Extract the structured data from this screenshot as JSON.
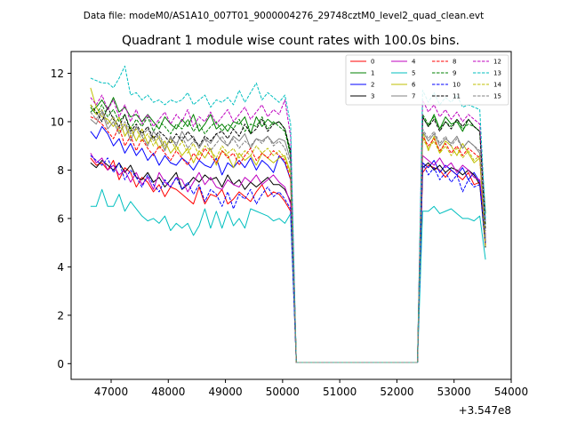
{
  "chart_data": {
    "type": "line",
    "file_label": "Data file: modeM0/AS1A10_007T01_9000004276_29748cztM0_level2_quad_clean.evt",
    "title": "Quadrant 1 module wise count rates with 100.0s bins.",
    "xlabel": "",
    "ylabel": "",
    "x_offset_label": "+3.547e8",
    "xlim": [
      46300,
      54000
    ],
    "ylim": [
      -0.65,
      12.9
    ],
    "x_ticks": [
      47000,
      48000,
      49000,
      50000,
      51000,
      52000,
      53000,
      54000
    ],
    "x_tick_labels": [
      "47000",
      "48000",
      "49000",
      "50000",
      "51000",
      "52000",
      "53000",
      "54000"
    ],
    "y_ticks": [
      0,
      2,
      4,
      6,
      8,
      10,
      12
    ],
    "y_tick_labels": [
      "0",
      "2",
      "4",
      "6",
      "8",
      "10",
      "12"
    ],
    "legend_location": "upper right",
    "segments": [
      {
        "start": 46640,
        "step": 100,
        "count": 36
      },
      {
        "start": 52450,
        "step": 100,
        "count": 12
      }
    ],
    "gap_x": [
      50240,
      52360
    ],
    "gap_y": 0.05,
    "series": [
      {
        "name": "0",
        "color": "#ff0000",
        "dashed": false,
        "seg1": [
          8.5,
          8.2,
          8.3,
          8.0,
          8.4,
          7.6,
          8.1,
          7.9,
          7.3,
          7.7,
          7.5,
          7.1,
          7.4,
          6.9,
          7.3,
          7.2,
          7.0,
          6.8,
          6.6,
          7.3,
          6.6,
          7.0,
          6.9,
          7.2,
          6.6,
          6.8,
          7.1,
          6.9,
          6.7,
          7.1,
          7.4,
          6.9,
          7.1,
          7.0,
          6.7,
          6.3
        ],
        "seg2": [
          7.9,
          8.2,
          8.1,
          8.0,
          7.7,
          8.0,
          7.8,
          7.6,
          7.9,
          7.4,
          7.5,
          5.0
        ]
      },
      {
        "name": "1",
        "color": "#008000",
        "dashed": false,
        "seg1": [
          10.4,
          10.6,
          10.9,
          10.5,
          11.0,
          10.4,
          10.6,
          10.2,
          10.3,
          10.0,
          10.3,
          10.0,
          9.7,
          10.2,
          9.9,
          9.7,
          10.1,
          9.8,
          10.3,
          9.6,
          9.9,
          10.3,
          9.7,
          9.9,
          9.6,
          10.0,
          9.9,
          10.2,
          9.5,
          10.2,
          9.8,
          10.1,
          9.9,
          10.0,
          9.7,
          8.7
        ],
        "seg2": [
          10.2,
          9.8,
          10.3,
          9.7,
          10.2,
          9.9,
          10.0,
          9.6,
          10.1,
          9.8,
          9.6,
          6.2
        ]
      },
      {
        "name": "2",
        "color": "#0000ff",
        "dashed": false,
        "seg1": [
          9.6,
          9.3,
          9.8,
          9.5,
          9.0,
          9.3,
          8.7,
          9.1,
          8.6,
          8.9,
          8.4,
          8.7,
          8.2,
          8.6,
          8.3,
          8.2,
          8.5,
          8.3,
          8.0,
          8.4,
          8.2,
          8.1,
          8.5,
          7.8,
          8.3,
          8.1,
          8.4,
          8.1,
          8.5,
          8.0,
          8.4,
          8.2,
          7.9,
          8.6,
          8.3,
          7.6
        ],
        "seg2": [
          8.3,
          8.1,
          8.4,
          7.9,
          8.2,
          8.0,
          7.8,
          8.1,
          7.6,
          7.9,
          7.5,
          5.2
        ]
      },
      {
        "name": "3",
        "color": "#000000",
        "dashed": false,
        "seg1": [
          8.3,
          8.1,
          8.4,
          8.2,
          8.0,
          8.3,
          7.9,
          8.2,
          7.7,
          7.6,
          7.9,
          7.5,
          7.7,
          7.3,
          7.6,
          7.9,
          7.2,
          7.4,
          7.7,
          7.5,
          7.8,
          7.6,
          7.7,
          7.3,
          7.8,
          7.4,
          7.6,
          7.2,
          7.5,
          7.3,
          7.5,
          7.7,
          7.4,
          7.4,
          7.2,
          6.7
        ],
        "seg2": [
          8.1,
          8.3,
          8.0,
          8.2,
          7.9,
          8.1,
          8.0,
          7.8,
          8.0,
          7.8,
          7.4,
          4.8
        ]
      },
      {
        "name": "4",
        "color": "#bf00bf",
        "dashed": false,
        "seg1": [
          8.7,
          8.3,
          8.5,
          8.0,
          8.2,
          7.8,
          8.0,
          7.5,
          7.9,
          7.4,
          7.7,
          7.2,
          7.9,
          7.5,
          7.3,
          7.7,
          7.6,
          7.1,
          7.5,
          7.9,
          7.4,
          7.7,
          7.3,
          7.2,
          7.6,
          7.4,
          7.3,
          7.7,
          7.5,
          7.8,
          7.4,
          7.6,
          7.8,
          7.5,
          7.3,
          6.6
        ],
        "seg2": [
          8.6,
          8.4,
          8.2,
          8.5,
          8.1,
          8.3,
          7.9,
          8.2,
          8.0,
          7.7,
          7.6,
          5.3
        ]
      },
      {
        "name": "5",
        "color": "#00bfbf",
        "dashed": false,
        "seg1": [
          6.5,
          6.5,
          7.2,
          6.5,
          6.5,
          7.0,
          6.3,
          6.7,
          6.4,
          6.1,
          5.9,
          6.0,
          5.8,
          6.1,
          5.5,
          5.8,
          5.6,
          5.8,
          5.3,
          5.7,
          6.4,
          5.6,
          6.3,
          5.6,
          6.3,
          5.7,
          6.0,
          5.6,
          6.4,
          6.3,
          6.2,
          6.1,
          5.9,
          6.0,
          5.8,
          6.2
        ],
        "seg2": [
          6.3,
          6.3,
          6.5,
          6.2,
          6.3,
          6.4,
          6.2,
          6.0,
          6.0,
          5.9,
          6.1,
          4.3
        ]
      },
      {
        "name": "6",
        "color": "#bfbf00",
        "dashed": false,
        "seg1": [
          11.4,
          10.6,
          10.2,
          10.1,
          9.8,
          10.2,
          9.4,
          9.8,
          9.2,
          9.7,
          9.1,
          9.4,
          8.9,
          9.2,
          8.7,
          9.0,
          8.6,
          8.9,
          8.3,
          8.8,
          8.5,
          8.9,
          8.2,
          8.8,
          8.6,
          8.1,
          8.7,
          8.4,
          8.6,
          8.2,
          8.7,
          8.5,
          8.3,
          8.5,
          8.6,
          7.9
        ],
        "seg2": [
          9.6,
          8.8,
          9.4,
          8.7,
          9.2,
          9.0,
          8.6,
          9.1,
          8.7,
          8.3,
          8.5,
          4.9
        ]
      },
      {
        "name": "7",
        "color": "#808080",
        "dashed": false,
        "seg1": [
          10.1,
          9.9,
          10.4,
          9.7,
          10.0,
          9.5,
          9.9,
          9.2,
          9.8,
          9.4,
          9.0,
          9.6,
          9.3,
          8.8,
          9.4,
          9.0,
          9.6,
          9.2,
          9.4,
          8.9,
          9.3,
          9.1,
          9.5,
          9.2,
          9.0,
          9.4,
          9.2,
          9.5,
          8.9,
          9.3,
          9.2,
          9.4,
          9.1,
          9.3,
          9.2,
          8.4
        ],
        "seg2": [
          9.6,
          9.2,
          9.5,
          9.0,
          9.3,
          9.1,
          9.4,
          8.9,
          9.2,
          9.0,
          8.7,
          5.1
        ]
      },
      {
        "name": "8",
        "color": "#ff0000",
        "dashed": true,
        "seg1": [
          10.2,
          10.1,
          9.9,
          9.6,
          9.3,
          9.8,
          9.0,
          9.4,
          8.8,
          9.3,
          8.9,
          8.6,
          9.0,
          8.7,
          8.4,
          8.8,
          8.5,
          8.2,
          8.7,
          8.4,
          8.9,
          8.6,
          8.3,
          8.8,
          8.5,
          8.7,
          8.2,
          8.6,
          8.9,
          8.4,
          8.7,
          8.5,
          8.8,
          8.6,
          8.4,
          7.6
        ],
        "seg2": [
          9.4,
          9.0,
          9.3,
          8.8,
          9.1,
          8.7,
          9.0,
          8.6,
          8.9,
          8.7,
          8.5,
          4.9
        ]
      },
      {
        "name": "9",
        "color": "#008000",
        "dashed": true,
        "seg1": [
          10.6,
          10.3,
          10.7,
          10.2,
          10.5,
          10.0,
          10.3,
          9.7,
          10.1,
          9.8,
          10.2,
          9.6,
          10.0,
          9.8,
          9.5,
          9.9,
          9.7,
          10.1,
          9.6,
          9.9,
          9.5,
          9.8,
          10.0,
          9.6,
          9.9,
          9.7,
          10.1,
          9.6,
          9.9,
          9.8,
          10.2,
          9.7,
          10.0,
          9.8,
          9.6,
          8.6
        ],
        "seg2": [
          10.3,
          9.9,
          10.2,
          9.7,
          10.0,
          9.8,
          10.1,
          9.7,
          9.9,
          9.8,
          9.6,
          5.7
        ]
      },
      {
        "name": "10",
        "color": "#0000ff",
        "dashed": true,
        "seg1": [
          8.6,
          8.4,
          8.2,
          8.5,
          7.9,
          8.3,
          7.6,
          8.0,
          7.7,
          7.3,
          7.8,
          7.4,
          7.1,
          7.6,
          7.3,
          7.7,
          7.2,
          7.5,
          7.0,
          7.4,
          6.7,
          7.2,
          7.0,
          6.5,
          7.1,
          6.4,
          7.0,
          6.8,
          7.2,
          6.6,
          7.0,
          7.3,
          6.9,
          7.1,
          6.8,
          6.4
        ],
        "seg2": [
          8.3,
          7.8,
          8.1,
          7.6,
          7.9,
          7.5,
          7.8,
          7.1,
          7.6,
          7.3,
          7.4,
          5.0
        ]
      },
      {
        "name": "11",
        "color": "#000000",
        "dashed": true,
        "seg1": [
          10.7,
          10.4,
          10.0,
          10.6,
          10.1,
          9.8,
          10.3,
          9.6,
          9.9,
          9.5,
          9.8,
          9.3,
          9.6,
          9.4,
          9.1,
          9.5,
          9.2,
          9.6,
          9.3,
          9.0,
          9.4,
          9.2,
          9.5,
          9.6,
          9.3,
          9.7,
          9.4,
          9.9,
          9.5,
          9.7,
          10.1,
          9.6,
          9.9,
          10.0,
          9.7,
          8.8
        ],
        "seg2": [
          10.2,
          9.8,
          10.1,
          9.6,
          10.0,
          9.7,
          10.1,
          9.8,
          10.1,
          9.8,
          9.6,
          5.5
        ]
      },
      {
        "name": "12",
        "color": "#bf00bf",
        "dashed": true,
        "seg1": [
          11.0,
          10.7,
          11.1,
          10.5,
          10.9,
          10.2,
          10.7,
          10.0,
          10.5,
          9.9,
          10.3,
          9.8,
          10.1,
          10.4,
          9.9,
          10.3,
          10.0,
          10.5,
          9.8,
          10.2,
          10.0,
          10.4,
          9.9,
          10.2,
          10.5,
          10.0,
          10.3,
          10.6,
          10.1,
          10.4,
          10.7,
          10.2,
          10.5,
          10.3,
          10.9,
          9.4
        ],
        "seg2": [
          10.9,
          10.4,
          10.7,
          10.2,
          10.5,
          10.1,
          10.4,
          10.0,
          10.3,
          10.1,
          9.9,
          5.9
        ]
      },
      {
        "name": "13",
        "color": "#00bfbf",
        "dashed": true,
        "seg1": [
          11.8,
          11.7,
          11.6,
          11.6,
          11.4,
          11.8,
          12.3,
          11.1,
          11.2,
          10.9,
          11.1,
          10.8,
          10.9,
          10.7,
          10.9,
          10.8,
          10.9,
          11.2,
          10.7,
          10.9,
          11.1,
          10.6,
          10.9,
          10.8,
          11.0,
          10.7,
          11.3,
          10.8,
          11.2,
          11.6,
          10.9,
          11.2,
          11.0,
          10.8,
          11.1,
          9.9
        ],
        "seg2": [
          11.3,
          10.8,
          11.2,
          10.7,
          11.0,
          10.8,
          11.1,
          10.6,
          10.7,
          10.6,
          10.5,
          5.9
        ]
      },
      {
        "name": "14",
        "color": "#bfbf00",
        "dashed": true,
        "seg1": [
          10.7,
          10.3,
          10.5,
          9.9,
          10.2,
          9.6,
          9.9,
          9.4,
          9.7,
          9.2,
          9.5,
          9.0,
          9.4,
          8.9,
          9.3,
          8.8,
          9.2,
          8.7,
          9.1,
          8.6,
          9.0,
          8.8,
          8.5,
          9.0,
          8.7,
          8.9,
          8.5,
          8.8,
          8.6,
          9.0,
          8.7,
          8.9,
          8.6,
          8.8,
          8.5,
          7.8
        ],
        "seg2": [
          9.3,
          8.9,
          9.2,
          8.7,
          9.0,
          8.6,
          8.9,
          8.5,
          8.8,
          8.4,
          8.6,
          4.8
        ]
      },
      {
        "name": "15",
        "color": "#808080",
        "dashed": true,
        "seg1": [
          10.4,
          10.1,
          10.5,
          9.9,
          10.2,
          9.7,
          10.0,
          9.5,
          9.8,
          9.4,
          9.7,
          9.2,
          9.5,
          9.0,
          9.3,
          9.1,
          9.4,
          8.9,
          9.2,
          9.0,
          9.3,
          8.8,
          9.1,
          9.4,
          9.0,
          9.3,
          8.9,
          9.2,
          9.0,
          9.3,
          9.1,
          9.4,
          9.0,
          9.2,
          8.9,
          8.2
        ],
        "seg2": [
          9.7,
          9.3,
          9.6,
          9.1,
          9.4,
          9.0,
          9.3,
          8.9,
          9.2,
          9.0,
          8.8,
          5.2
        ]
      }
    ]
  }
}
